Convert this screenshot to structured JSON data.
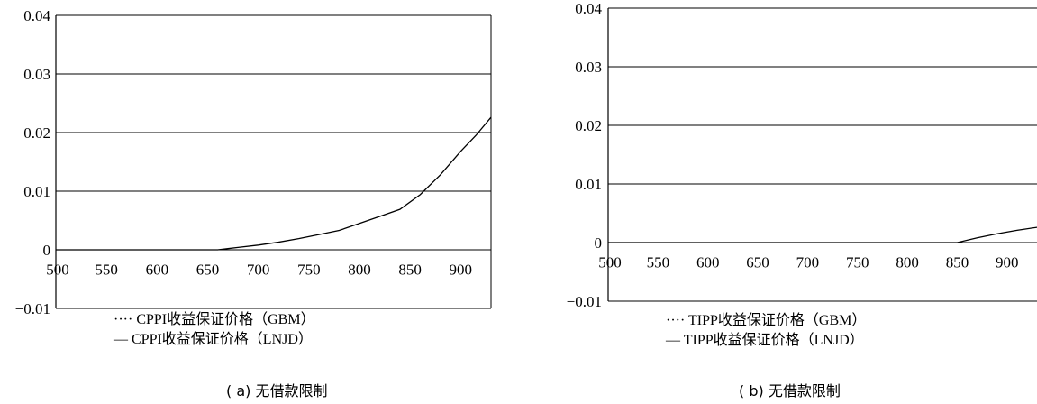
{
  "chart_data": [
    {
      "type": "line",
      "caption": "( a)  无借款限制",
      "x": [
        500,
        550,
        600,
        650,
        700,
        750,
        800,
        850,
        900
      ],
      "ylim": [
        -0.01,
        0.04
      ],
      "xlim": [
        500,
        930
      ],
      "yticks": [
        "0.04",
        "0.03",
        "0.02",
        "0.01",
        "0",
        "−0.01"
      ],
      "xticks": [
        "500",
        "550",
        "600",
        "650",
        "700",
        "750",
        "800",
        "850",
        "900"
      ],
      "grid": true,
      "series": [
        {
          "name": "···· CPPI收益保证价格（GBM）",
          "style": "dotted",
          "points": [
            [
              500,
              0
            ],
            [
              660,
              0
            ],
            [
              700,
              0
            ],
            [
              750,
              0
            ],
            [
              800,
              0
            ],
            [
              850,
              0
            ],
            [
              930,
              0
            ]
          ]
        },
        {
          "name": "— CPPI收益保证价格（LNJD）",
          "style": "solid",
          "points": [
            [
              500,
              0
            ],
            [
              660,
              0
            ],
            [
              680,
              0.0004
            ],
            [
              700,
              0.0008
            ],
            [
              720,
              0.0013
            ],
            [
              740,
              0.0019
            ],
            [
              760,
              0.0026
            ],
            [
              780,
              0.0033
            ],
            [
              800,
              0.0045
            ],
            [
              820,
              0.0057
            ],
            [
              840,
              0.0069
            ],
            [
              860,
              0.0094
            ],
            [
              880,
              0.0128
            ],
            [
              900,
              0.0168
            ],
            [
              915,
              0.0195
            ],
            [
              930,
              0.0226
            ]
          ]
        }
      ]
    },
    {
      "type": "line",
      "caption": "( b)  无借款限制",
      "x": [
        500,
        550,
        600,
        650,
        700,
        750,
        800,
        850,
        900
      ],
      "ylim": [
        -0.01,
        0.04
      ],
      "xlim": [
        500,
        930
      ],
      "yticks": [
        "0.04",
        "0.03",
        "0.02",
        "0.01",
        "0",
        "−0.01"
      ],
      "xticks": [
        "500",
        "550",
        "600",
        "650",
        "700",
        "750",
        "800",
        "850",
        "900"
      ],
      "grid": true,
      "series": [
        {
          "name": "···· TIPP收益保证价格（GBM）",
          "style": "dotted",
          "points": [
            [
              500,
              0
            ],
            [
              850,
              0
            ],
            [
              870,
              0
            ],
            [
              900,
              0
            ],
            [
              930,
              0
            ]
          ]
        },
        {
          "name": "— TIPP收益保证价格（LNJD）",
          "style": "solid",
          "points": [
            [
              500,
              0
            ],
            [
              850,
              0
            ],
            [
              870,
              0.0008
            ],
            [
              890,
              0.0015
            ],
            [
              910,
              0.0021
            ],
            [
              930,
              0.0026
            ]
          ]
        }
      ]
    }
  ]
}
